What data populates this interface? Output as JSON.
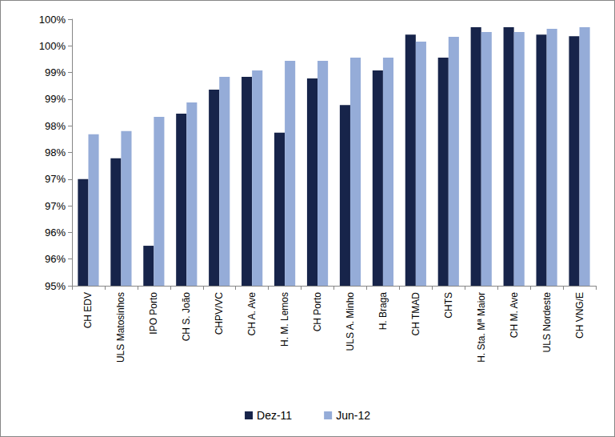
{
  "chart_data": {
    "type": "bar",
    "categories": [
      "CH EDV",
      "ULS Matosinhos",
      "IPO Porto",
      "CH S. João",
      "CHPV/VC",
      "CH A. Ave",
      "H. M. Lemos",
      "CH Porto",
      "ULS A. Minho",
      "H. Braga",
      "CH TMAD",
      "CHTS",
      "H. Sta. Mª Maior",
      "CH M. Ave",
      "ULS Nordeste",
      "CH VNG/E"
    ],
    "series": [
      {
        "name": "Dez-11",
        "color": "#17244a",
        "values": [
          97.0,
          97.39,
          95.75,
          98.23,
          98.68,
          98.92,
          97.87,
          98.89,
          98.39,
          99.04,
          99.71,
          99.28,
          99.85,
          99.85,
          99.71,
          99.68
        ]
      },
      {
        "name": "Jun-12",
        "color": "#95acd8",
        "values": [
          97.84,
          97.9,
          98.17,
          98.44,
          98.92,
          99.04,
          99.22,
          99.22,
          99.28,
          99.28,
          99.58,
          99.67,
          99.76,
          99.76,
          99.82,
          99.85
        ]
      }
    ],
    "ylim": [
      95,
      100
    ],
    "yticks": [
      {
        "value": 95,
        "label": "95%"
      },
      {
        "value": 95.5,
        "label": "96%"
      },
      {
        "value": 96,
        "label": "96%"
      },
      {
        "value": 96.5,
        "label": "97%"
      },
      {
        "value": 97,
        "label": "97%"
      },
      {
        "value": 97.5,
        "label": "98%"
      },
      {
        "value": 98,
        "label": "98%"
      },
      {
        "value": 98.5,
        "label": "99%"
      },
      {
        "value": 99,
        "label": "99%"
      },
      {
        "value": 99.5,
        "label": "100%"
      },
      {
        "value": 100,
        "label": "100%"
      }
    ],
    "grid": false,
    "legend": "bottom"
  }
}
